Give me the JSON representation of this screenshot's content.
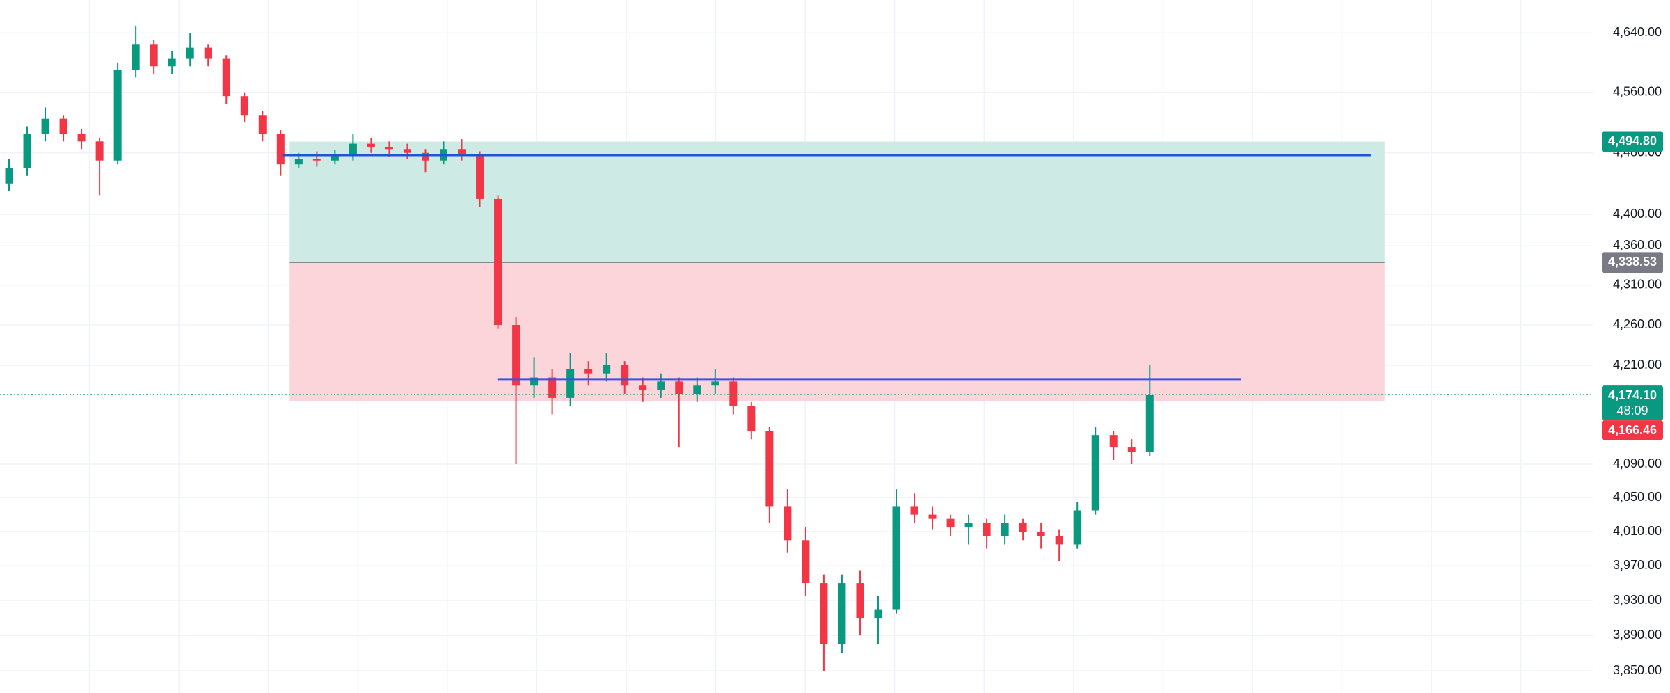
{
  "chart_data": {
    "type": "candlestick",
    "log": true,
    "grid": true,
    "up_color": "#089981",
    "down_color": "#f23645",
    "ylim": [
      3825,
      4685
    ],
    "yticks": [
      {
        "value": 4640,
        "label": "4,640.00"
      },
      {
        "value": 4560,
        "label": "4,560.00"
      },
      {
        "value": 4480,
        "label": "4,480.00"
      },
      {
        "value": 4400,
        "label": "4,400.00"
      },
      {
        "value": 4360,
        "label": "4,360.00"
      },
      {
        "value": 4310,
        "label": "4,310.00"
      },
      {
        "value": 4260,
        "label": "4,260.00"
      },
      {
        "value": 4210,
        "label": "4,210.00"
      },
      {
        "value": 4090,
        "label": "4,090.00"
      },
      {
        "value": 4050,
        "label": "4,050.00"
      },
      {
        "value": 4010,
        "label": "4,010.00"
      },
      {
        "value": 3970,
        "label": "3,970.00"
      },
      {
        "value": 3930,
        "label": "3,930.00"
      },
      {
        "value": 3890,
        "label": "3,890.00"
      },
      {
        "value": 3850,
        "label": "3,850.00"
      }
    ],
    "open": [
      4440,
      4460,
      4505,
      4525,
      4505,
      4495,
      4470,
      4590,
      4625,
      4595,
      4605,
      4620,
      4605,
      4555,
      4530,
      4505,
      4465,
      4472,
      4470,
      4478,
      4492,
      4488,
      4485,
      4480,
      4470,
      4485,
      4478,
      4420,
      4260,
      4185,
      4195,
      4170,
      4205,
      4200,
      4210,
      4185,
      4180,
      4190,
      4175,
      4185,
      4190,
      4160,
      4130,
      4040,
      4000,
      3950,
      3880,
      3950,
      3910,
      3920,
      4040,
      4030,
      4025,
      4015,
      4020,
      4005,
      4020,
      4010,
      4005,
      3995,
      4035,
      4125,
      4110,
      4105
    ],
    "high": [
      4472,
      4515,
      4540,
      4530,
      4512,
      4500,
      4600,
      4650,
      4630,
      4615,
      4640,
      4625,
      4610,
      4560,
      4535,
      4510,
      4480,
      4482,
      4484,
      4505,
      4500,
      4495,
      4492,
      4485,
      4495,
      4498,
      4482,
      4425,
      4270,
      4220,
      4205,
      4225,
      4215,
      4225,
      4215,
      4195,
      4200,
      4195,
      4195,
      4205,
      4195,
      4165,
      4135,
      4060,
      4015,
      3960,
      3960,
      3965,
      3935,
      4060,
      4055,
      4040,
      4030,
      4030,
      4025,
      4030,
      4025,
      4020,
      4012,
      4045,
      4135,
      4130,
      4120,
      4210
    ],
    "low": [
      4430,
      4450,
      4495,
      4495,
      4485,
      4425,
      4465,
      4580,
      4585,
      4585,
      4595,
      4595,
      4545,
      4520,
      4495,
      4450,
      4460,
      4462,
      4465,
      4470,
      4480,
      4475,
      4472,
      4455,
      4465,
      4470,
      4410,
      4255,
      4090,
      4170,
      4150,
      4160,
      4185,
      4190,
      4175,
      4165,
      4170,
      4110,
      4165,
      4175,
      4150,
      4120,
      4020,
      3985,
      3935,
      3850,
      3870,
      3890,
      3880,
      3915,
      4020,
      4012,
      4005,
      3995,
      3990,
      3995,
      4000,
      3990,
      3975,
      3990,
      4030,
      4095,
      4090,
      4100
    ],
    "close": [
      4460,
      4505,
      4525,
      4505,
      4495,
      4470,
      4590,
      4625,
      4595,
      4605,
      4620,
      4605,
      4555,
      4530,
      4505,
      4465,
      4472,
      4470,
      4478,
      4492,
      4488,
      4485,
      4480,
      4470,
      4485,
      4478,
      4420,
      4260,
      4185,
      4195,
      4170,
      4205,
      4200,
      4210,
      4185,
      4180,
      4190,
      4175,
      4185,
      4190,
      4160,
      4130,
      4040,
      4000,
      3950,
      3880,
      3950,
      3910,
      3920,
      4040,
      4030,
      4025,
      4015,
      4020,
      4005,
      4020,
      4010,
      4005,
      3995,
      4035,
      4125,
      4110,
      4105,
      4174.1
    ],
    "position": {
      "target": {
        "value": 4494.8,
        "label": "4,494.80",
        "color": "#089981",
        "zone_color": "#cdeae4"
      },
      "entry": {
        "value": 4338.53,
        "label": "4,338.53",
        "color": "#787b86"
      },
      "stop": {
        "value": 4166.46,
        "label": "4,166.46",
        "color": "#f23645",
        "zone_color": "#fbd5d9"
      }
    },
    "lines": [
      {
        "value": 4477,
        "color": "#1e55d8"
      },
      {
        "value": 4193,
        "color": "#3f51e0"
      }
    ],
    "last_price": {
      "value": 4174.1,
      "label": "4,174.10",
      "countdown": "48:09",
      "color": "#089981"
    }
  }
}
